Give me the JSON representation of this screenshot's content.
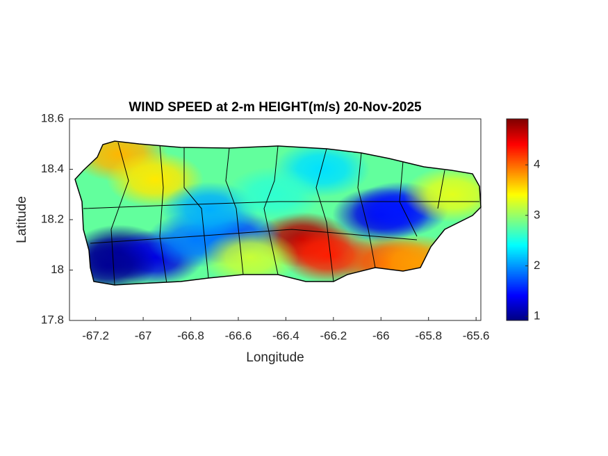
{
  "chart_data": {
    "type": "map",
    "title": "WIND SPEED at 2-m HEIGHT(m/s) 20-Nov-2025",
    "xlabel": "Longitude",
    "ylabel": "Latitude",
    "xlim": [
      -67.31,
      -65.58
    ],
    "ylim": [
      17.8,
      18.6
    ],
    "xticks": [
      -67.2,
      -67,
      -66.8,
      -66.6,
      -66.4,
      -66.2,
      -66,
      -65.8,
      -65.6
    ],
    "yticks": [
      17.8,
      18,
      18.2,
      18.4,
      18.6
    ],
    "colormap": "jet",
    "clim": [
      0.92,
      4.91
    ],
    "cticks": [
      1,
      2,
      3,
      4
    ],
    "background_value": 2.8,
    "hotspots": [
      {
        "lon": -67.1,
        "lat": 18.07,
        "value": 1.0
      },
      {
        "lon": -66.95,
        "lat": 18.05,
        "value": 1.3
      },
      {
        "lon": -67.15,
        "lat": 18.02,
        "value": 1.0
      },
      {
        "lon": -66.0,
        "lat": 18.22,
        "value": 1.3
      },
      {
        "lon": -65.92,
        "lat": 18.24,
        "value": 1.5
      },
      {
        "lon": -66.33,
        "lat": 18.12,
        "value": 4.7
      },
      {
        "lon": -66.22,
        "lat": 18.06,
        "value": 4.3
      },
      {
        "lon": -65.97,
        "lat": 18.03,
        "value": 4.1
      },
      {
        "lon": -65.85,
        "lat": 18.03,
        "value": 3.8
      },
      {
        "lon": -67.1,
        "lat": 18.46,
        "value": 3.7
      },
      {
        "lon": -66.95,
        "lat": 18.36,
        "value": 3.5
      },
      {
        "lon": -66.62,
        "lat": 18.13,
        "value": 1.7
      },
      {
        "lon": -66.78,
        "lat": 18.12,
        "value": 1.9
      },
      {
        "lon": -66.72,
        "lat": 18.24,
        "value": 2.1
      },
      {
        "lon": -66.25,
        "lat": 18.4,
        "value": 2.3
      },
      {
        "lon": -66.45,
        "lat": 18.3,
        "value": 2.6
      },
      {
        "lon": -65.7,
        "lat": 18.3,
        "value": 3.3
      },
      {
        "lon": -66.55,
        "lat": 18.05,
        "value": 3.2
      }
    ]
  }
}
